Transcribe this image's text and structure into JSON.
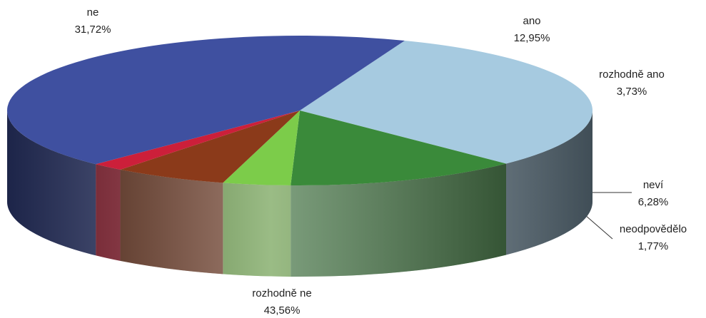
{
  "chart_data": {
    "type": "pie3d",
    "categories": [
      "ne",
      "ano",
      "rozhodně ano",
      "neví",
      "neodpovědělo",
      "rozhodně ne"
    ],
    "values": [
      31.72,
      12.95,
      3.73,
      6.28,
      1.77,
      43.56
    ],
    "value_labels": [
      "31,72%",
      "12,95%",
      "3,73%",
      "6,28%",
      "1,77%",
      "43,56%"
    ],
    "colors": [
      "#a6cae0",
      "#3a8a3a",
      "#7ccc4a",
      "#8b3a1a",
      "#cc1f3a",
      "#3f50a0"
    ]
  }
}
